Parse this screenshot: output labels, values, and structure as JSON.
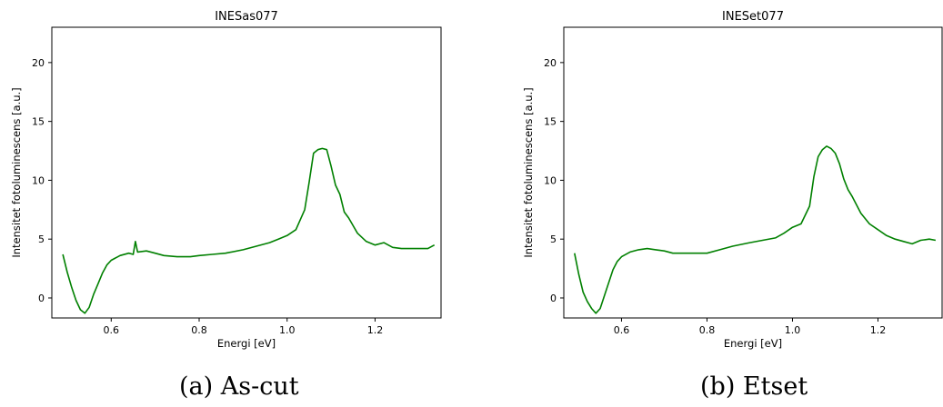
{
  "captions": [
    "(a) As-cut",
    "(b) Etset"
  ],
  "chart_data": [
    {
      "type": "line",
      "title": "INESas077",
      "xlabel": "Energi [eV]",
      "ylabel": "Intensitet fotoluminescens [a.u.]",
      "xlim": [
        0.465,
        1.35
      ],
      "ylim": [
        -1.7,
        23.0
      ],
      "xticks": [
        0.6,
        0.8,
        1.0,
        1.2
      ],
      "xtick_labels": [
        "0.6",
        "0.8",
        "1.0",
        "1.2"
      ],
      "yticks": [
        0,
        5,
        10,
        15,
        20
      ],
      "ytick_labels": [
        "0",
        "5",
        "10",
        "15",
        "20"
      ],
      "grid": false,
      "legend": false,
      "series": [
        {
          "color": "#008000",
          "x": [
            0.49,
            0.5,
            0.51,
            0.52,
            0.53,
            0.54,
            0.55,
            0.56,
            0.57,
            0.58,
            0.59,
            0.6,
            0.62,
            0.64,
            0.65,
            0.655,
            0.66,
            0.68,
            0.7,
            0.72,
            0.75,
            0.78,
            0.8,
            0.83,
            0.86,
            0.9,
            0.93,
            0.96,
            0.98,
            1.0,
            1.02,
            1.04,
            1.05,
            1.06,
            1.07,
            1.08,
            1.09,
            1.1,
            1.11,
            1.12,
            1.13,
            1.14,
            1.16,
            1.18,
            1.2,
            1.22,
            1.24,
            1.26,
            1.28,
            1.3,
            1.32,
            1.335
          ],
          "y": [
            3.7,
            2.2,
            0.9,
            -0.2,
            -1.0,
            -1.3,
            -0.8,
            0.3,
            1.2,
            2.1,
            2.8,
            3.2,
            3.6,
            3.8,
            3.7,
            4.8,
            3.9,
            4.0,
            3.8,
            3.6,
            3.5,
            3.5,
            3.6,
            3.7,
            3.8,
            4.1,
            4.4,
            4.7,
            5.0,
            5.3,
            5.8,
            7.5,
            9.8,
            12.3,
            12.6,
            12.7,
            12.6,
            11.2,
            9.6,
            8.8,
            7.3,
            6.8,
            5.5,
            4.8,
            4.5,
            4.7,
            4.3,
            4.2,
            4.2,
            4.2,
            4.2,
            4.5
          ]
        }
      ]
    },
    {
      "type": "line",
      "title": "INESet077",
      "xlabel": "Energi [eV]",
      "ylabel": "Intensitet fotoluminescens [a.u.]",
      "xlim": [
        0.465,
        1.35
      ],
      "ylim": [
        -1.7,
        23.0
      ],
      "xticks": [
        0.6,
        0.8,
        1.0,
        1.2
      ],
      "xtick_labels": [
        "0.6",
        "0.8",
        "1.0",
        "1.2"
      ],
      "yticks": [
        0,
        5,
        10,
        15,
        20
      ],
      "ytick_labels": [
        "0",
        "5",
        "10",
        "15",
        "20"
      ],
      "grid": false,
      "legend": false,
      "series": [
        {
          "color": "#008000",
          "x": [
            0.49,
            0.5,
            0.51,
            0.52,
            0.53,
            0.54,
            0.55,
            0.56,
            0.57,
            0.58,
            0.59,
            0.6,
            0.62,
            0.64,
            0.66,
            0.68,
            0.7,
            0.72,
            0.75,
            0.78,
            0.8,
            0.83,
            0.86,
            0.9,
            0.93,
            0.96,
            0.98,
            1.0,
            1.02,
            1.04,
            1.05,
            1.06,
            1.07,
            1.08,
            1.09,
            1.1,
            1.11,
            1.12,
            1.13,
            1.14,
            1.16,
            1.18,
            1.2,
            1.22,
            1.24,
            1.26,
            1.28,
            1.3,
            1.32,
            1.335
          ],
          "y": [
            3.8,
            2.0,
            0.5,
            -0.3,
            -0.9,
            -1.3,
            -0.9,
            0.2,
            1.3,
            2.4,
            3.1,
            3.5,
            3.9,
            4.1,
            4.2,
            4.1,
            4.0,
            3.8,
            3.8,
            3.8,
            3.8,
            4.1,
            4.4,
            4.7,
            4.9,
            5.1,
            5.5,
            6.0,
            6.3,
            7.8,
            10.3,
            12.0,
            12.6,
            12.9,
            12.7,
            12.3,
            11.4,
            10.1,
            9.2,
            8.6,
            7.2,
            6.3,
            5.8,
            5.3,
            5.0,
            4.8,
            4.6,
            4.9,
            5.0,
            4.9
          ]
        }
      ]
    }
  ]
}
